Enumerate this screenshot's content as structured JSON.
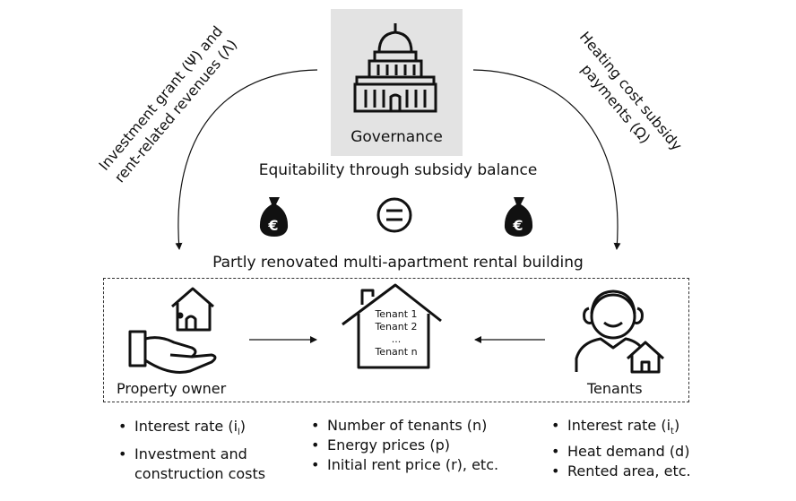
{
  "governance": {
    "label": "Governance"
  },
  "left_flow": {
    "line1": "Investment grant (Ψ) and",
    "line2": "rent-related revenues (Λ)"
  },
  "right_flow": {
    "line1": "Heating cost subsidy",
    "line2": "payments (Ω)"
  },
  "balance": {
    "title": "Equitability through subsidy balance"
  },
  "building": {
    "title": "Partly renovated multi-apartment rental building",
    "tenants": [
      "Tenant 1",
      "Tenant 2",
      "...",
      "Tenant n"
    ]
  },
  "owner": {
    "label": "Property owner"
  },
  "tenants_actor": {
    "label": "Tenants"
  },
  "params": {
    "owner": {
      "b1": "Interest rate (i",
      "b1_sub": "l",
      "b1_end": ")",
      "b2_a": "Investment and",
      "b2_b": "construction costs"
    },
    "building": {
      "b1": "Number of tenants (n)",
      "b2": "Energy prices (p)",
      "b3": "Initial rent price (r), etc."
    },
    "tenants": {
      "b1": "Interest rate (i",
      "b1_sub": "t",
      "b1_end": ")",
      "b2": "Heat demand (d)",
      "b3": "Rented area, etc."
    }
  },
  "icons": [
    "capitol-icon",
    "money-bag-euro-icon",
    "equals-icon",
    "house-icon",
    "hand-house-icon",
    "tenant-person-icon"
  ]
}
